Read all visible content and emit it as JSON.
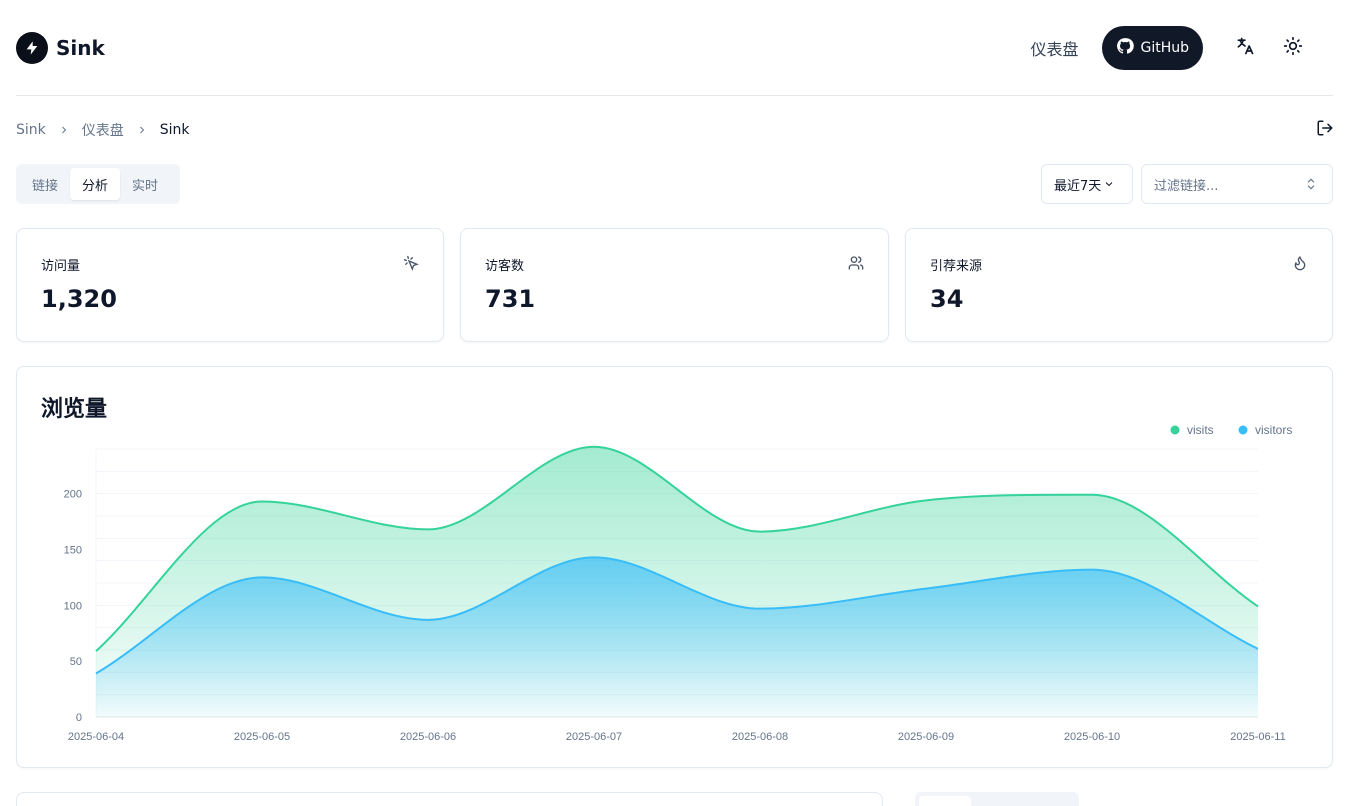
{
  "header": {
    "brand": "Sink",
    "nav_dashboard": "仪表盘",
    "github_label": "GitHub"
  },
  "breadcrumb": [
    "Sink",
    "仪表盘",
    "Sink"
  ],
  "tabs": [
    {
      "label": "链接",
      "active": false
    },
    {
      "label": "分析",
      "active": true
    },
    {
      "label": "实时",
      "active": false
    }
  ],
  "controls": {
    "range_label": "最近7天",
    "filter_placeholder": "过滤链接..."
  },
  "stats": [
    {
      "label": "访问量",
      "value": "1,320",
      "icon": "cursor-click-icon"
    },
    {
      "label": "访客数",
      "value": "731",
      "icon": "users-icon"
    },
    {
      "label": "引荐来源",
      "value": "34",
      "icon": "flame-icon"
    }
  ],
  "chart_data": {
    "type": "area",
    "title": "浏览量",
    "x": [
      "2025-06-04",
      "2025-06-05",
      "2025-06-06",
      "2025-06-07",
      "2025-06-08",
      "2025-06-09",
      "2025-06-10",
      "2025-06-11"
    ],
    "series": [
      {
        "name": "visits",
        "color": "#34d399",
        "values": [
          59,
          193,
          168,
          242,
          166,
          194,
          199,
          99
        ]
      },
      {
        "name": "visitors",
        "color": "#38bdf8",
        "values": [
          39,
          125,
          87,
          143,
          97,
          115,
          132,
          61
        ]
      }
    ],
    "yticks": [
      0,
      50,
      100,
      150,
      200
    ],
    "ylim": [
      0,
      240
    ],
    "legend": "top-right",
    "grid": true
  }
}
